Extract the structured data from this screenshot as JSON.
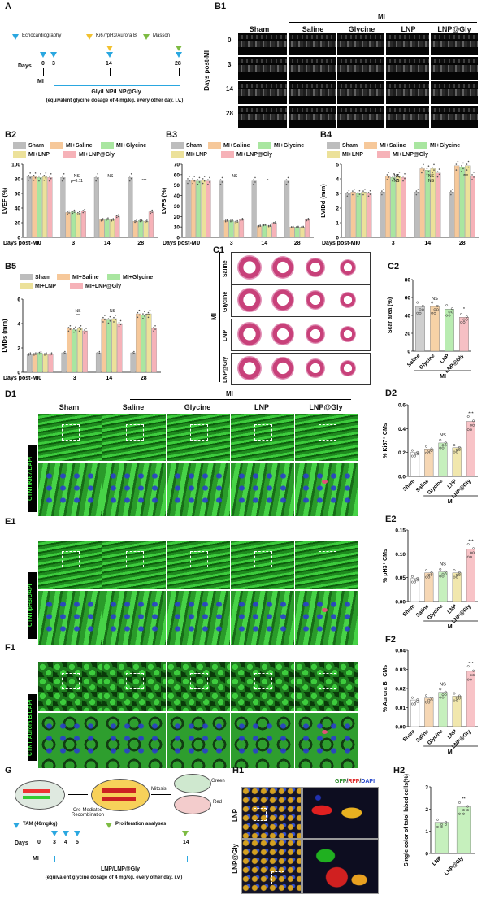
{
  "panels": {
    "A": "A",
    "B1": "B1",
    "B2": "B2",
    "B3": "B3",
    "B4": "B4",
    "B5": "B5",
    "C1": "C1",
    "C2": "C2",
    "D1": "D1",
    "D2": "D2",
    "E1": "E1",
    "E2": "E2",
    "F1": "F1",
    "F2": "F2",
    "G": "G",
    "H1": "H1",
    "H2": "H2"
  },
  "panelA": {
    "legend": {
      "echo": "Echocardiography",
      "ki67": "Ki67/pH3/Aurora B",
      "masson": "Masson"
    },
    "days_label": "Days",
    "days": [
      "0",
      "3",
      "14",
      "28"
    ],
    "mi": "MI",
    "treatment": "Gly/LNP/LNP@Gly",
    "dosage": "(equivalent glycine dosage of 4 mg/kg, every other day, i.v.)",
    "colors": {
      "echo": "#2aa7e0",
      "ki67": "#f2c12e",
      "masson": "#7dbb42"
    }
  },
  "panelB1": {
    "mi_header": "MI",
    "columns": [
      "Sham",
      "Saline",
      "Glycine",
      "LNP",
      "LNP@Gly"
    ],
    "rows": [
      "0",
      "3",
      "14",
      "28"
    ],
    "row_axis": "Days post-MI"
  },
  "legend6": {
    "sham": "Sham",
    "saline": "MI+Saline",
    "glycine": "MI+Glycine",
    "lnp": "MI+LNP",
    "lnpgly": "MI+LNP@Gly",
    "colors": {
      "sham": "#bdbdbd",
      "saline": "#f6c89a",
      "glycine": "#a9e6a0",
      "lnp": "#ece19a",
      "lnpgly": "#f6b2b8"
    }
  },
  "panelB2": {
    "ylabel": "LVEF (%)",
    "xlabel": "Days post-MI",
    "ticks_top": [
      "100",
      "90",
      "80",
      "70",
      "60"
    ],
    "ticks_bot": [
      "50",
      "40",
      "30",
      "20",
      "10",
      "0"
    ],
    "ann": [
      "NS",
      "p=0.11",
      "NS",
      "***"
    ]
  },
  "panelB3": {
    "ylabel": "LVFS (%)",
    "xlabel": "Days post-MI",
    "ticks_top": [
      "70",
      "60",
      "50",
      "40"
    ],
    "ticks_bot": [
      "30",
      "20",
      "10",
      "0"
    ],
    "ann": [
      "NS",
      "*"
    ]
  },
  "panelB4": {
    "ylabel": "LVIDd (mm)",
    "xlabel": "Days post-MI",
    "ticks": [
      "5",
      "4",
      "3",
      "2",
      "1",
      "0"
    ],
    "ann": [
      "NS",
      "NS",
      "NS",
      "NS",
      "***"
    ]
  },
  "panelB5": {
    "ylabel": "LVIDs (mm)",
    "xlabel": "Days post-MI",
    "ticks": [
      "6",
      "4",
      "2",
      "0"
    ],
    "ann": [
      "NS",
      "**",
      "NS",
      "***"
    ]
  },
  "xgroups": [
    "0",
    "3",
    "14",
    "28"
  ],
  "chart_data": [
    {
      "type": "bar",
      "title": "",
      "ylabel": "LVEF (%)",
      "xlabel": "Days post-MI",
      "categories": [
        "0",
        "3",
        "14",
        "28"
      ],
      "ylim": [
        0,
        100
      ],
      "series": [
        {
          "name": "Sham",
          "values": [
            83,
            82,
            82,
            82
          ]
        },
        {
          "name": "MI+Saline",
          "values": [
            83,
            34,
            24,
            22
          ]
        },
        {
          "name": "MI+Glycine",
          "values": [
            82,
            35,
            25,
            23
          ]
        },
        {
          "name": "MI+LNP",
          "values": [
            83,
            33,
            24,
            22
          ]
        },
        {
          "name": "MI+LNP@Gly",
          "values": [
            82,
            36,
            29,
            35
          ]
        }
      ]
    },
    {
      "type": "bar",
      "title": "",
      "ylabel": "LVFS (%)",
      "xlabel": "Days post-MI",
      "categories": [
        "0",
        "3",
        "14",
        "28"
      ],
      "ylim": [
        0,
        70
      ],
      "series": [
        {
          "name": "Sham",
          "values": [
            55,
            54,
            54,
            54
          ]
        },
        {
          "name": "MI+Saline",
          "values": [
            55,
            16,
            11,
            10
          ]
        },
        {
          "name": "MI+Glycine",
          "values": [
            54,
            16,
            12,
            10
          ]
        },
        {
          "name": "MI+LNP",
          "values": [
            55,
            15,
            11,
            10
          ]
        },
        {
          "name": "MI+LNP@Gly",
          "values": [
            54,
            17,
            14,
            17
          ]
        }
      ]
    },
    {
      "type": "bar",
      "title": "",
      "ylabel": "LVIDd (mm)",
      "xlabel": "Days post-MI",
      "categories": [
        "0",
        "3",
        "14",
        "28"
      ],
      "ylim": [
        0,
        5
      ],
      "series": [
        {
          "name": "Sham",
          "values": [
            3.0,
            3.1,
            3.1,
            3.1
          ]
        },
        {
          "name": "MI+Saline",
          "values": [
            3.1,
            4.2,
            4.7,
            4.9
          ]
        },
        {
          "name": "MI+Glycine",
          "values": [
            3.0,
            4.1,
            4.6,
            4.8
          ]
        },
        {
          "name": "MI+LNP",
          "values": [
            3.1,
            4.2,
            4.7,
            4.9
          ]
        },
        {
          "name": "MI+LNP@Gly",
          "values": [
            3.0,
            4.1,
            4.4,
            4.2
          ]
        }
      ]
    },
    {
      "type": "bar",
      "title": "",
      "ylabel": "LVIDs (mm)",
      "xlabel": "Days post-MI",
      "categories": [
        "0",
        "3",
        "14",
        "28"
      ],
      "ylim": [
        0,
        6
      ],
      "series": [
        {
          "name": "Sham",
          "values": [
            1.5,
            1.6,
            1.6,
            1.6
          ]
        },
        {
          "name": "MI+Saline",
          "values": [
            1.5,
            3.6,
            4.4,
            4.8
          ]
        },
        {
          "name": "MI+Glycine",
          "values": [
            1.6,
            3.5,
            4.3,
            4.7
          ]
        },
        {
          "name": "MI+LNP",
          "values": [
            1.5,
            3.6,
            4.4,
            4.8
          ]
        },
        {
          "name": "MI+LNP@Gly",
          "values": [
            1.5,
            3.4,
            4.0,
            3.6
          ]
        }
      ]
    },
    {
      "type": "bar",
      "title": "",
      "ylabel": "Scar area (%)",
      "xlabel": "",
      "categories": [
        "Saline",
        "Glycine",
        "LNP",
        "LNP@Gly"
      ],
      "group": "MI",
      "ylim": [
        0,
        80
      ],
      "series": [
        {
          "values": [
            50,
            50,
            47,
            38
          ]
        }
      ],
      "annotations": [
        "",
        "NS",
        "",
        "*"
      ]
    },
    {
      "type": "bar",
      "title": "",
      "ylabel": "% Ki67+ CMs",
      "xlabel": "",
      "categories": [
        "Sham",
        "Saline",
        "Glycine",
        "LNP",
        "LNP@Gly"
      ],
      "group": "MI",
      "ylim": [
        0,
        0.6
      ],
      "series": [
        {
          "values": [
            0.2,
            0.23,
            0.28,
            0.24,
            0.46
          ]
        }
      ],
      "annotations": [
        "",
        "",
        "NS",
        "",
        "***"
      ]
    },
    {
      "type": "bar",
      "title": "",
      "ylabel": "% pH3+ CMs",
      "xlabel": "",
      "categories": [
        "Sham",
        "Saline",
        "Glycine",
        "LNP",
        "LNP@Gly"
      ],
      "group": "MI",
      "ylim": [
        0,
        0.15
      ],
      "series": [
        {
          "values": [
            0.048,
            0.06,
            0.062,
            0.06,
            0.11
          ]
        }
      ],
      "annotations": [
        "",
        "",
        "NS",
        "",
        "***"
      ]
    },
    {
      "type": "bar",
      "title": "",
      "ylabel": "% Aurora B+ CMs",
      "xlabel": "",
      "categories": [
        "Sham",
        "Saline",
        "Glycine",
        "LNP",
        "LNP@Gly"
      ],
      "group": "MI",
      "ylim": [
        0,
        0.04
      ],
      "series": [
        {
          "values": [
            0.014,
            0.015,
            0.018,
            0.016,
            0.029
          ]
        }
      ],
      "annotations": [
        "",
        "",
        "NS",
        "",
        "***"
      ]
    },
    {
      "type": "bar",
      "title": "",
      "ylabel": "Single color of tatol labed cells(%)",
      "xlabel": "",
      "categories": [
        "LNP",
        "LNP@Gly"
      ],
      "ylim": [
        0,
        3
      ],
      "series": [
        {
          "values": [
            1.4,
            2.1
          ]
        }
      ],
      "annotations": [
        "",
        "**"
      ]
    }
  ],
  "panelC1": {
    "mi": "MI",
    "rows": [
      "Saline",
      "Glycine",
      "LNP",
      "LNP@Gly"
    ]
  },
  "panelC2": {
    "ylabel": "Scar area (%)",
    "ticks": [
      "80",
      "60",
      "40",
      "20",
      "0"
    ],
    "cats": [
      "Saline",
      "Glycine",
      "LNP",
      "LNP@Gly"
    ],
    "mi": "MI",
    "ann": [
      "NS",
      "*"
    ]
  },
  "panelD1": {
    "mi": "MI",
    "columns": [
      "Sham",
      "Saline",
      "Glycine",
      "LNP",
      "LNP@Gly"
    ],
    "stain": "CTNT/Ki67/DAPI"
  },
  "panelE1": {
    "stain": "CTNT/pH3/DAPI"
  },
  "panelF1": {
    "stain": "CTNT/Aurora B/DAPI"
  },
  "panelD2": {
    "ylabel": "% Ki67⁺ CMs",
    "ticks": [
      "0.6",
      "0.4",
      "0.2",
      "0.0"
    ],
    "cats": [
      "Sham",
      "Saline",
      "Glycine",
      "LNP",
      "LNP@Gly"
    ],
    "mi": "MI",
    "ann": [
      "NS",
      "***"
    ]
  },
  "panelE2": {
    "ylabel": "% pH3⁺ CMs",
    "ticks": [
      "0.15",
      "0.10",
      "0.05",
      "0.00"
    ],
    "cats": [
      "Sham",
      "Saline",
      "Glycine",
      "LNP",
      "LNP@Gly"
    ],
    "mi": "MI",
    "ann": [
      "NS",
      "***"
    ]
  },
  "panelF2": {
    "ylabel": "% Aurora B⁺ CMs",
    "ticks": [
      "0.04",
      "0.03",
      "0.02",
      "0.01",
      "0.00"
    ],
    "cats": [
      "Sham",
      "Saline",
      "Glycine",
      "LNP",
      "LNP@Gly"
    ],
    "mi": "MI",
    "ann": [
      "NS",
      "***"
    ]
  },
  "panelG": {
    "recomb": "Cre-Mediated Recombination",
    "mitosis": "Mitosis",
    "green": "Green",
    "red": "Red",
    "legend": {
      "tam": "TAM (40mg/kg)",
      "prolif": "Proliferation analyses"
    },
    "days_label": "Days",
    "days": [
      "0",
      "3",
      "4",
      "5",
      "14"
    ],
    "mi": "MI",
    "treatment": "LNP/LNP@Gly",
    "dosage": "(equivalent glycine dosage of 4 mg/kg, every other day, i.v.)"
  },
  "panelH1": {
    "stain": "GFP/RFP/DAPI",
    "rows": [
      "LNP",
      "LNP@Gly"
    ]
  },
  "panelH2": {
    "ylabel": "Single color of tatol labed cells(%)",
    "ticks": [
      "3",
      "2",
      "1",
      "0"
    ],
    "cats": [
      "LNP",
      "LNP@Gly"
    ],
    "ann": [
      "**"
    ]
  }
}
